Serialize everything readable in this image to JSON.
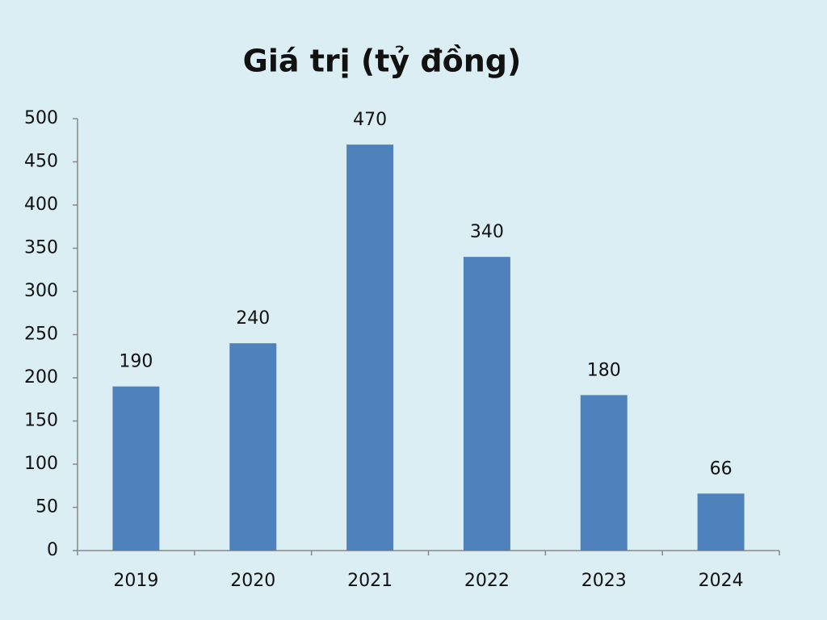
{
  "chart_data": {
    "type": "bar",
    "title": "Giá trị (tỷ đồng)",
    "categories": [
      "2019",
      "2020",
      "2021",
      "2022",
      "2023",
      "2024"
    ],
    "values": [
      190,
      240,
      470,
      340,
      180,
      66
    ],
    "color": "#4f81bd",
    "ylim": [
      0,
      500
    ],
    "yticks": [
      0,
      50,
      100,
      150,
      200,
      250,
      300,
      350,
      400,
      450,
      500
    ],
    "grid": false,
    "data_labels": true
  }
}
